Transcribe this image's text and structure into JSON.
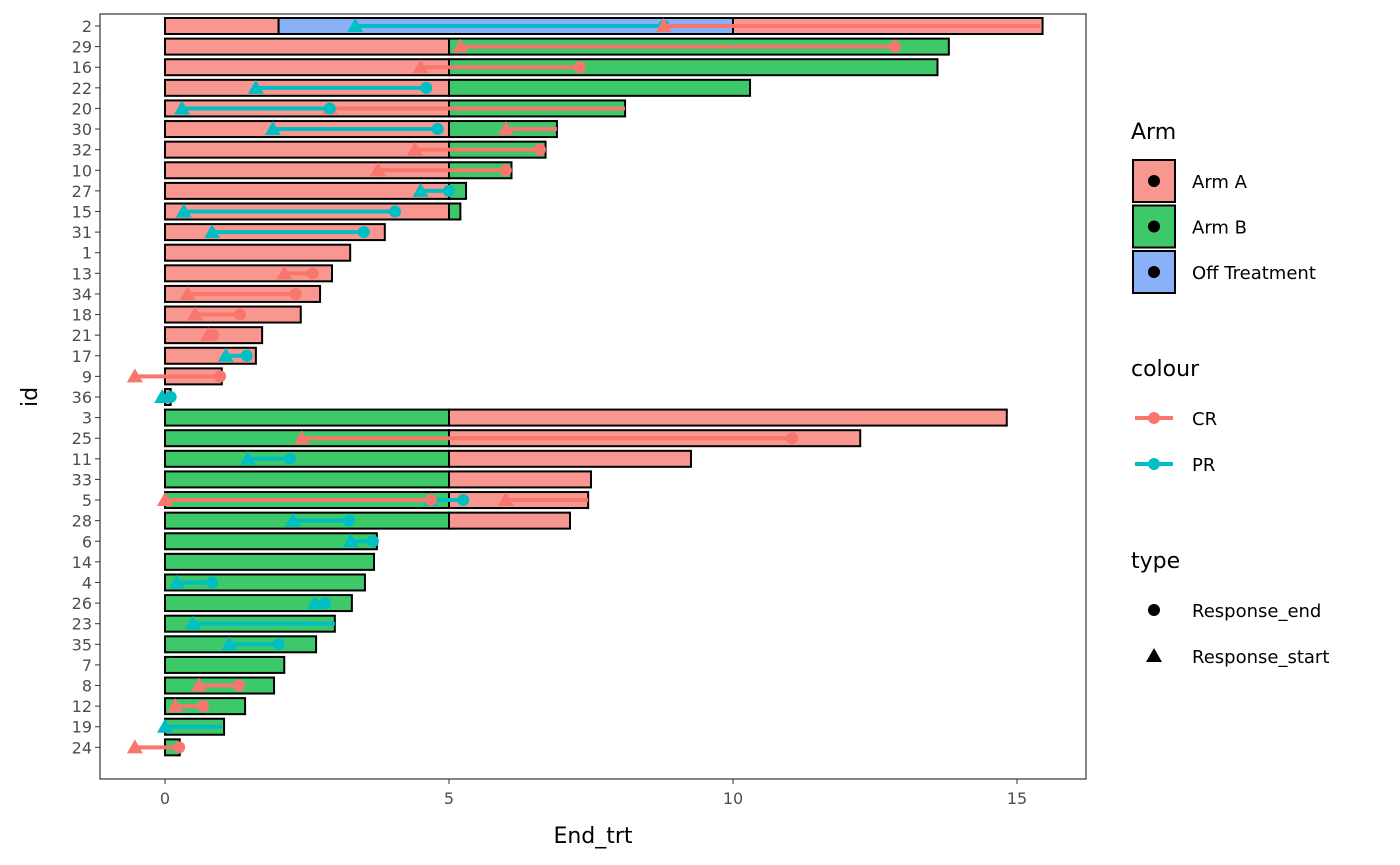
{
  "chart_data": {
    "type": "bar",
    "subtype": "swimmer",
    "xlabel": "End_trt",
    "ylabel": "id",
    "xlim": [
      -0.6,
      16.2
    ],
    "xticks": [
      0,
      5,
      10,
      15
    ],
    "grid": false,
    "arm_colors": {
      "Arm A": "#F8978F",
      "Arm B": "#3DC96A",
      "Off Treatment": "#8AB0F8"
    },
    "response_colors": {
      "CR": "#F8766D",
      "PR": "#00BFC4"
    },
    "legend": {
      "placement": "right",
      "arm_title": "Arm",
      "arm_items": [
        "Arm A",
        "Arm B",
        "Off Treatment"
      ],
      "colour_title": "colour",
      "colour_items": [
        "CR",
        "PR"
      ],
      "type_title": "type",
      "type_items": [
        "Response_end",
        "Response_start"
      ]
    },
    "rows": [
      {
        "id": "2",
        "segments": [
          [
            0,
            2,
            "Arm A"
          ],
          [
            2,
            10,
            "Off Treatment"
          ],
          [
            10,
            15.45,
            "Arm A"
          ]
        ],
        "responses": [
          [
            "PR",
            3.35,
            8.78,
            true
          ],
          [
            "CR",
            8.78,
            15.4,
            false
          ]
        ]
      },
      {
        "id": "29",
        "segments": [
          [
            0,
            5,
            "Arm A"
          ],
          [
            5,
            13.8,
            "Arm B"
          ]
        ],
        "responses": [
          [
            "CR",
            5.2,
            12.85,
            true
          ]
        ]
      },
      {
        "id": "16",
        "segments": [
          [
            0,
            5,
            "Arm A"
          ],
          [
            5,
            13.6,
            "Arm B"
          ]
        ],
        "responses": [
          [
            "CR",
            4.5,
            7.3,
            true
          ]
        ]
      },
      {
        "id": "22",
        "segments": [
          [
            0,
            5,
            "Arm A"
          ],
          [
            5,
            10.3,
            "Arm B"
          ]
        ],
        "responses": [
          [
            "PR",
            1.6,
            4.6,
            true
          ]
        ]
      },
      {
        "id": "20",
        "segments": [
          [
            0,
            5,
            "Arm A"
          ],
          [
            5,
            8.1,
            "Arm B"
          ]
        ],
        "responses": [
          [
            "CR",
            2.9,
            8.1,
            false
          ],
          [
            "PR",
            0.3,
            2.9,
            true
          ]
        ]
      },
      {
        "id": "30",
        "segments": [
          [
            0,
            5,
            "Arm A"
          ],
          [
            5,
            6.9,
            "Arm B"
          ]
        ],
        "responses": [
          [
            "PR",
            1.9,
            4.8,
            true
          ],
          [
            "CR",
            6.0,
            6.9,
            false
          ]
        ]
      },
      {
        "id": "32",
        "segments": [
          [
            0,
            5,
            "Arm A"
          ],
          [
            5,
            6.7,
            "Arm B"
          ]
        ],
        "responses": [
          [
            "CR",
            4.4,
            6.6,
            true
          ]
        ]
      },
      {
        "id": "10",
        "segments": [
          [
            0,
            5,
            "Arm A"
          ],
          [
            5,
            6.1,
            "Arm B"
          ]
        ],
        "responses": [
          [
            "CR",
            3.75,
            6.0,
            true
          ]
        ]
      },
      {
        "id": "27",
        "segments": [
          [
            0,
            5,
            "Arm A"
          ],
          [
            5,
            5.3,
            "Arm B"
          ]
        ],
        "responses": [
          [
            "PR",
            4.5,
            5.0,
            true
          ]
        ]
      },
      {
        "id": "15",
        "segments": [
          [
            0,
            5,
            "Arm A"
          ],
          [
            5,
            5.2,
            "Arm B"
          ]
        ],
        "responses": [
          [
            "PR",
            0.33,
            4.05,
            true
          ]
        ]
      },
      {
        "id": "31",
        "segments": [
          [
            0,
            3.87,
            "Arm A"
          ]
        ],
        "responses": [
          [
            "PR",
            0.83,
            3.5,
            true
          ]
        ]
      },
      {
        "id": "1",
        "segments": [
          [
            0,
            3.26,
            "Arm A"
          ]
        ],
        "responses": []
      },
      {
        "id": "13",
        "segments": [
          [
            0,
            2.94,
            "Arm A"
          ]
        ],
        "responses": [
          [
            "CR",
            2.1,
            2.6,
            true
          ]
        ]
      },
      {
        "id": "34",
        "segments": [
          [
            0,
            2.73,
            "Arm A"
          ]
        ],
        "responses": [
          [
            "CR",
            0.4,
            2.3,
            true
          ]
        ]
      },
      {
        "id": "18",
        "segments": [
          [
            0,
            2.39,
            "Arm A"
          ]
        ],
        "responses": [
          [
            "CR",
            0.53,
            1.32,
            true
          ]
        ]
      },
      {
        "id": "21",
        "segments": [
          [
            0,
            1.71,
            "Arm A"
          ]
        ],
        "responses": [
          [
            "CR",
            0.76,
            0.85,
            true
          ]
        ]
      },
      {
        "id": "17",
        "segments": [
          [
            0,
            1.6,
            "Arm A"
          ]
        ],
        "responses": [
          [
            "PR",
            1.07,
            1.44,
            true
          ]
        ]
      },
      {
        "id": "9",
        "segments": [
          [
            0,
            1.0,
            "Arm A"
          ]
        ],
        "responses": [
          [
            "CR",
            -0.53,
            0.97,
            true
          ]
        ]
      },
      {
        "id": "36",
        "segments": [
          [
            0,
            0.1,
            "Arm A"
          ]
        ],
        "responses": [
          [
            "PR",
            -0.05,
            0.1,
            true
          ]
        ]
      },
      {
        "id": "3",
        "segments": [
          [
            0,
            5,
            "Arm B"
          ],
          [
            5,
            14.82,
            "Arm A"
          ]
        ],
        "responses": []
      },
      {
        "id": "25",
        "segments": [
          [
            0,
            5,
            "Arm B"
          ],
          [
            5,
            12.24,
            "Arm A"
          ]
        ],
        "responses": [
          [
            "CR",
            2.41,
            11.04,
            true
          ]
        ]
      },
      {
        "id": "11",
        "segments": [
          [
            0,
            5,
            "Arm B"
          ],
          [
            5,
            9.26,
            "Arm A"
          ]
        ],
        "responses": [
          [
            "PR",
            1.46,
            2.2,
            true
          ]
        ]
      },
      {
        "id": "33",
        "segments": [
          [
            0,
            5,
            "Arm B"
          ],
          [
            5,
            7.5,
            "Arm A"
          ]
        ],
        "responses": []
      },
      {
        "id": "5",
        "segments": [
          [
            0,
            5,
            "Arm B"
          ],
          [
            5,
            7.45,
            "Arm A"
          ]
        ],
        "responses": [
          [
            "PR",
            4.68,
            5.25,
            true
          ],
          [
            "CR",
            0.0,
            4.68,
            true
          ],
          [
            "CR",
            6.0,
            7.45,
            false
          ]
        ]
      },
      {
        "id": "28",
        "segments": [
          [
            0,
            5,
            "Arm B"
          ],
          [
            5,
            7.13,
            "Arm A"
          ]
        ],
        "responses": [
          [
            "PR",
            2.25,
            3.24,
            true
          ]
        ]
      },
      {
        "id": "6",
        "segments": [
          [
            0,
            3.73,
            "Arm B"
          ]
        ],
        "responses": [
          [
            "PR",
            3.27,
            3.66,
            true
          ]
        ]
      },
      {
        "id": "14",
        "segments": [
          [
            0,
            3.68,
            "Arm B"
          ]
        ],
        "responses": []
      },
      {
        "id": "4",
        "segments": [
          [
            0,
            3.52,
            "Arm B"
          ]
        ],
        "responses": [
          [
            "PR",
            0.21,
            0.83,
            true
          ]
        ]
      },
      {
        "id": "26",
        "segments": [
          [
            0,
            3.29,
            "Arm B"
          ]
        ],
        "responses": [
          [
            "PR",
            2.64,
            2.82,
            true
          ]
        ]
      },
      {
        "id": "23",
        "segments": [
          [
            0,
            2.99,
            "Arm B"
          ]
        ],
        "responses": [
          [
            "PR",
            0.49,
            2.99,
            false
          ]
        ]
      },
      {
        "id": "35",
        "segments": [
          [
            0,
            2.66,
            "Arm B"
          ]
        ],
        "responses": [
          [
            "PR",
            1.13,
            2.0,
            true
          ]
        ]
      },
      {
        "id": "7",
        "segments": [
          [
            0,
            2.1,
            "Arm B"
          ]
        ],
        "responses": []
      },
      {
        "id": "8",
        "segments": [
          [
            0,
            1.92,
            "Arm B"
          ]
        ],
        "responses": [
          [
            "CR",
            0.6,
            1.3,
            true
          ]
        ]
      },
      {
        "id": "12",
        "segments": [
          [
            0,
            1.41,
            "Arm B"
          ]
        ],
        "responses": [
          [
            "CR",
            0.18,
            0.67,
            true
          ]
        ]
      },
      {
        "id": "19",
        "segments": [
          [
            0,
            1.04,
            "Arm B"
          ]
        ],
        "responses": [
          [
            "PR",
            0.0,
            1.0,
            false
          ]
        ]
      },
      {
        "id": "24",
        "segments": [
          [
            0,
            0.26,
            "Arm B"
          ]
        ],
        "responses": [
          [
            "CR",
            -0.53,
            0.25,
            true
          ]
        ]
      }
    ]
  }
}
